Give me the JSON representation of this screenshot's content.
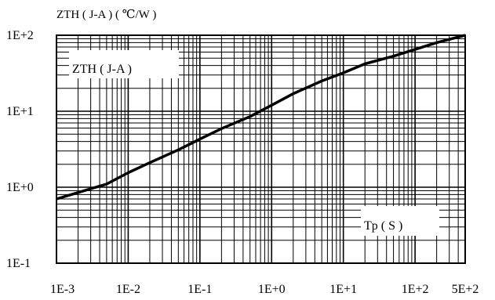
{
  "chart_data": {
    "type": "line",
    "title": "ZTH ( J-A ) ( ℃/W )",
    "xlabel": "Tp ( S )",
    "ylabel": "",
    "x_scale": "log",
    "y_scale": "log",
    "xlim": [
      0.001,
      500
    ],
    "ylim": [
      0.1,
      100
    ],
    "x_tick_labels": [
      "1E-3",
      "1E-2",
      "1E-1",
      "1E+0",
      "1E+1",
      "1E+2",
      "5E+2"
    ],
    "x_tick_values": [
      0.001,
      0.01,
      0.1,
      1,
      10,
      100,
      500
    ],
    "y_tick_labels": [
      "1E+2",
      "1E+1",
      "1E+0",
      "1E-1"
    ],
    "y_tick_values": [
      100,
      10,
      1,
      0.1
    ],
    "grid": true,
    "series": [
      {
        "name": "ZTH ( J-A )",
        "x": [
          0.001,
          0.002,
          0.005,
          0.01,
          0.02,
          0.05,
          0.1,
          0.2,
          0.5,
          1,
          2,
          5,
          10,
          20,
          50,
          100,
          200,
          500
        ],
        "y": [
          0.7,
          0.85,
          1.1,
          1.55,
          2.1,
          3.1,
          4.3,
          5.9,
          8.5,
          12,
          17,
          25,
          32,
          42,
          53,
          65,
          80,
          100
        ]
      }
    ]
  }
}
